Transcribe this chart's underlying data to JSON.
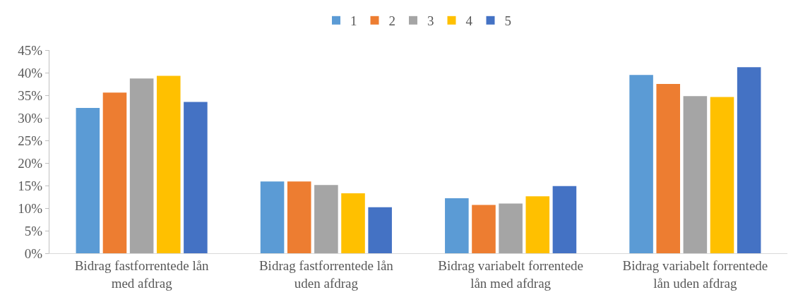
{
  "chart_data": {
    "type": "bar",
    "categories": [
      "Bidrag fastforrentede lån med afdrag",
      "Bidrag fastforrentede lån uden afdrag",
      "Bidrag variabelt forrentede lån med afdrag",
      "Bidrag variabelt forrentede lån uden afdrag"
    ],
    "series": [
      {
        "name": "1",
        "color": "#5b9bd5",
        "values": [
          32.2,
          15.9,
          12.2,
          39.5
        ]
      },
      {
        "name": "2",
        "color": "#ed7d31",
        "values": [
          35.6,
          15.9,
          10.7,
          37.5
        ]
      },
      {
        "name": "3",
        "color": "#a5a5a5",
        "values": [
          38.7,
          15.1,
          11.0,
          34.8
        ]
      },
      {
        "name": "4",
        "color": "#ffc000",
        "values": [
          39.3,
          13.3,
          12.6,
          34.6
        ]
      },
      {
        "name": "5",
        "color": "#4472c4",
        "values": [
          33.5,
          10.2,
          14.9,
          41.2
        ]
      }
    ],
    "ylim": [
      0,
      45
    ],
    "yticks": [
      {
        "value": 0,
        "label": "0%"
      },
      {
        "value": 5,
        "label": "5%"
      },
      {
        "value": 10,
        "label": "10%"
      },
      {
        "value": 15,
        "label": "15%"
      },
      {
        "value": 20,
        "label": "20%"
      },
      {
        "value": 25,
        "label": "25%"
      },
      {
        "value": 30,
        "label": "30%"
      },
      {
        "value": 35,
        "label": "35%"
      },
      {
        "value": 40,
        "label": "40%"
      },
      {
        "value": 45,
        "label": "45%"
      }
    ],
    "legend": "top"
  }
}
